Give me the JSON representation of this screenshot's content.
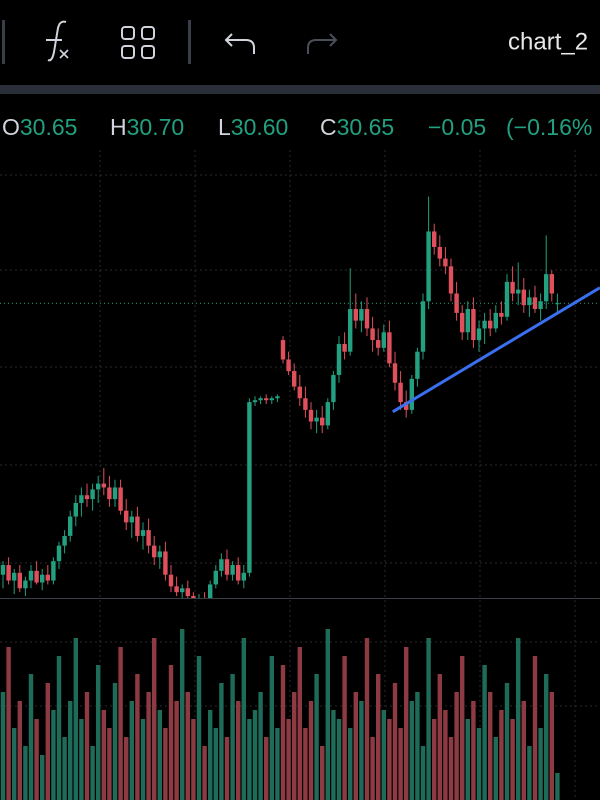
{
  "toolbar": {
    "chart_name": "chart_2"
  },
  "legend": {
    "items": [
      {
        "label": "O",
        "value": "30.65"
      },
      {
        "label": "H",
        "value": "30.70"
      },
      {
        "label": "L",
        "value": "30.60"
      },
      {
        "label": "C",
        "value": "30.65"
      }
    ],
    "change": "−0.05",
    "change_pct": "(−0.16%"
  },
  "chart_data": {
    "type": "candlestick",
    "up_color": "#22a07f",
    "down_color": "#e0505c",
    "volume_up_color": "#1d6b58",
    "volume_down_color": "#8e3a42",
    "ylim": [
      29.13,
      31.44
    ],
    "volume_ylim": [
      0,
      100
    ],
    "open": [
      29.25,
      29.3,
      29.22,
      29.26,
      29.18,
      29.22,
      29.27,
      29.21,
      29.25,
      29.22,
      29.32,
      29.4,
      29.45,
      29.55,
      29.62,
      29.66,
      29.64,
      29.69,
      29.72,
      29.7,
      29.64,
      29.7,
      29.58,
      29.52,
      29.55,
      29.45,
      29.48,
      29.4,
      29.34,
      29.37,
      29.25,
      29.19,
      29.16,
      29.18,
      29.14,
      29.12,
      29.13,
      29.11,
      29.2,
      29.27,
      29.33,
      29.25,
      29.3,
      29.22,
      29.26,
      30.14,
      30.15,
      30.16,
      30.15,
      30.16,
      30.46,
      30.36,
      30.3,
      30.22,
      30.16,
      30.1,
      30.04,
      30.06,
      30.02,
      30.14,
      30.28,
      30.44,
      30.4,
      30.62,
      30.56,
      30.62,
      30.52,
      30.46,
      30.42,
      30.5,
      30.34,
      30.24,
      30.14,
      30.1,
      30.26,
      30.4,
      30.66,
      31.02,
      30.94,
      30.88,
      30.84,
      30.7,
      30.6,
      30.5,
      30.62,
      30.46,
      30.52,
      30.56,
      30.52,
      30.6,
      30.58,
      30.76,
      30.7,
      30.72,
      30.64,
      30.68,
      30.62,
      30.66,
      30.8,
      30.65
    ],
    "high": [
      29.32,
      29.34,
      29.28,
      29.3,
      29.24,
      29.3,
      29.32,
      29.28,
      29.3,
      29.34,
      29.42,
      29.48,
      29.58,
      29.66,
      29.7,
      29.72,
      29.72,
      29.76,
      29.8,
      29.76,
      29.74,
      29.74,
      29.64,
      29.58,
      29.6,
      29.52,
      29.54,
      29.45,
      29.4,
      29.42,
      29.3,
      29.24,
      29.2,
      29.22,
      29.16,
      29.15,
      29.16,
      29.22,
      29.3,
      29.36,
      29.38,
      29.32,
      29.34,
      29.3,
      30.16,
      30.17,
      30.17,
      30.18,
      30.17,
      30.18,
      30.48,
      30.4,
      30.34,
      30.28,
      30.22,
      30.14,
      30.1,
      30.12,
      30.16,
      30.3,
      30.48,
      30.5,
      30.83,
      30.7,
      30.66,
      30.68,
      30.58,
      30.52,
      30.54,
      30.56,
      30.4,
      30.3,
      30.2,
      30.28,
      30.42,
      30.7,
      31.2,
      31.06,
      31.0,
      30.94,
      30.88,
      30.76,
      30.64,
      30.66,
      30.68,
      30.56,
      30.6,
      30.62,
      30.64,
      30.66,
      30.8,
      30.84,
      30.86,
      30.78,
      30.72,
      30.74,
      30.7,
      31.0,
      30.82,
      30.7
    ],
    "low": [
      29.18,
      29.2,
      29.15,
      29.16,
      29.14,
      29.18,
      29.2,
      29.17,
      29.2,
      29.2,
      29.28,
      29.36,
      29.42,
      29.5,
      29.55,
      29.6,
      29.58,
      29.62,
      29.66,
      29.6,
      29.6,
      29.56,
      29.48,
      29.44,
      29.42,
      29.38,
      29.36,
      29.3,
      29.28,
      29.22,
      29.16,
      29.14,
      29.12,
      29.12,
      29.1,
      29.08,
      29.09,
      29.1,
      29.18,
      29.24,
      29.22,
      29.22,
      29.2,
      29.18,
      29.24,
      30.12,
      30.13,
      30.13,
      30.13,
      30.14,
      30.34,
      30.28,
      30.2,
      30.12,
      30.06,
      30.0,
      29.98,
      29.98,
      30.0,
      30.1,
      30.24,
      30.36,
      30.38,
      30.52,
      30.5,
      30.48,
      30.4,
      30.38,
      30.4,
      30.32,
      30.2,
      30.1,
      30.06,
      30.08,
      30.22,
      30.36,
      30.62,
      30.9,
      30.84,
      30.8,
      30.66,
      30.56,
      30.46,
      30.46,
      30.42,
      30.4,
      30.44,
      30.48,
      30.5,
      30.54,
      30.56,
      30.66,
      30.64,
      30.6,
      30.58,
      30.6,
      30.56,
      30.62,
      30.66,
      30.6
    ],
    "close": [
      29.3,
      29.22,
      29.26,
      29.18,
      29.22,
      29.27,
      29.21,
      29.25,
      29.22,
      29.32,
      29.4,
      29.45,
      29.55,
      29.62,
      29.66,
      29.64,
      29.69,
      29.72,
      29.7,
      29.64,
      29.7,
      29.58,
      29.52,
      29.55,
      29.45,
      29.48,
      29.4,
      29.34,
      29.37,
      29.25,
      29.19,
      29.16,
      29.18,
      29.14,
      29.12,
      29.13,
      29.11,
      29.2,
      29.27,
      29.33,
      29.25,
      29.3,
      29.22,
      29.26,
      30.14,
      30.15,
      30.16,
      30.15,
      30.16,
      30.17,
      30.36,
      30.3,
      30.22,
      30.16,
      30.1,
      30.04,
      30.06,
      30.02,
      30.14,
      30.28,
      30.44,
      30.4,
      30.62,
      30.56,
      30.62,
      30.52,
      30.46,
      30.42,
      30.5,
      30.34,
      30.24,
      30.14,
      30.1,
      30.26,
      30.4,
      30.66,
      31.02,
      30.94,
      30.88,
      30.84,
      30.7,
      30.6,
      30.5,
      30.62,
      30.46,
      30.52,
      30.56,
      30.52,
      30.6,
      30.58,
      30.76,
      30.7,
      30.72,
      30.64,
      30.68,
      30.62,
      30.66,
      30.8,
      30.7,
      30.65
    ],
    "volume": [
      60,
      85,
      40,
      55,
      30,
      70,
      45,
      25,
      65,
      50,
      80,
      35,
      55,
      90,
      45,
      60,
      30,
      75,
      50,
      40,
      65,
      85,
      35,
      55,
      70,
      45,
      60,
      90,
      50,
      40,
      75,
      55,
      95,
      60,
      45,
      80,
      30,
      50,
      40,
      65,
      35,
      70,
      55,
      90,
      45,
      50,
      60,
      35,
      80,
      40,
      75,
      45,
      60,
      85,
      40,
      55,
      70,
      30,
      95,
      50,
      45,
      80,
      40,
      60,
      55,
      90,
      35,
      70,
      50,
      45,
      65,
      40,
      85,
      55,
      60,
      30,
      90,
      45,
      70,
      50,
      35,
      60,
      80,
      45,
      55,
      40,
      75,
      60,
      35,
      50,
      65,
      45,
      90,
      55,
      30,
      80,
      40,
      70,
      60,
      15
    ],
    "trendline": {
      "color": "#3a6ff0",
      "from_index": 69.6,
      "from_price": 30.09,
      "to_index": 106.6,
      "to_price": 30.73
    }
  }
}
